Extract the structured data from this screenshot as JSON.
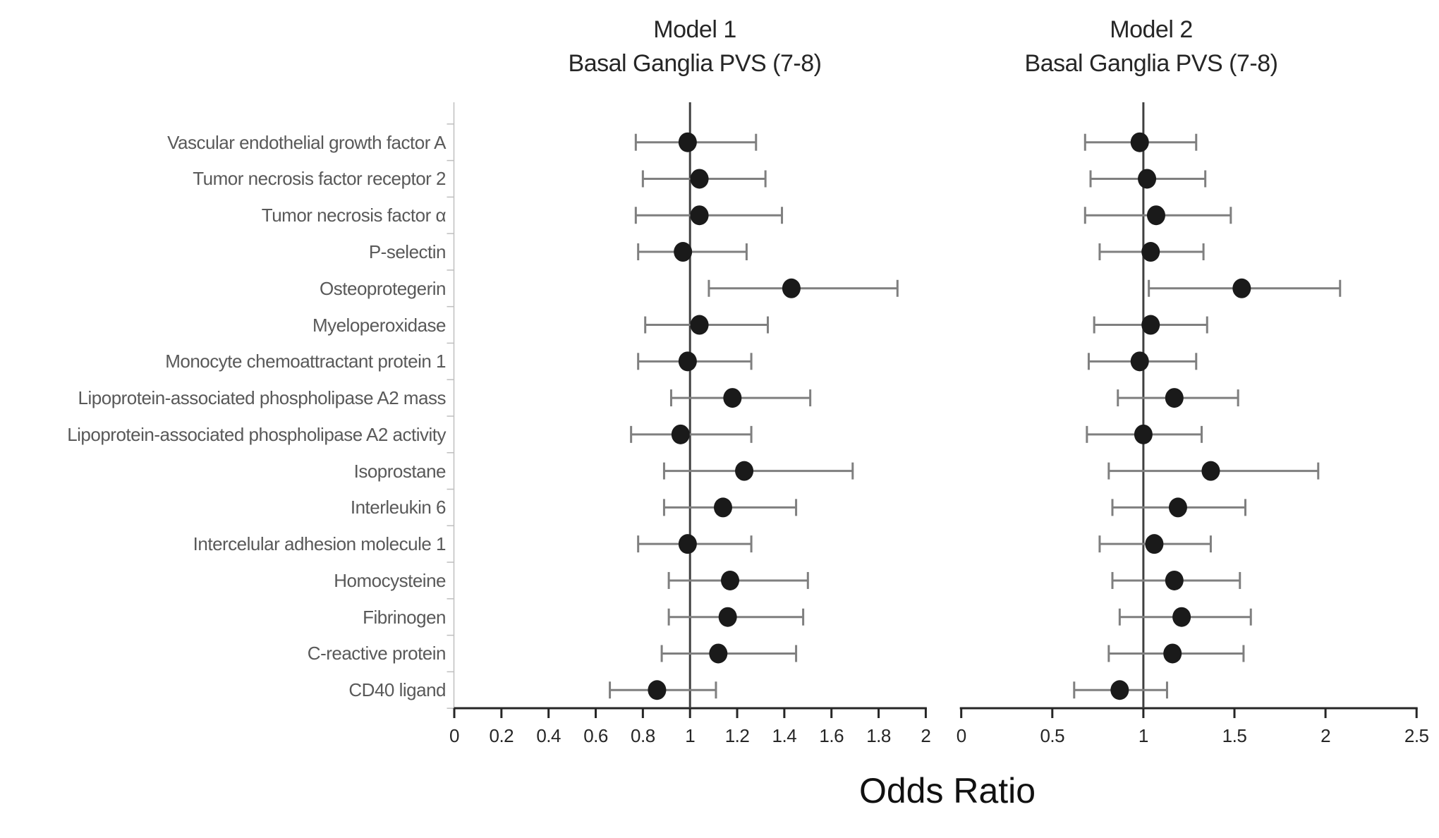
{
  "page": {
    "background": "#ffffff"
  },
  "chart_data": {
    "type": "forest",
    "xlabel": "Odds Ratio",
    "grid": false,
    "legend": "none",
    "categories": [
      "Vascular endothelial growth factor A",
      "Tumor necrosis factor receptor 2",
      "Tumor necrosis factor α",
      "P-selectin",
      "Osteoprotegerin",
      "Myeloperoxidase",
      "Monocyte chemoattractant protein 1",
      "Lipoprotein-associated phospholipase A2 mass",
      "Lipoprotein-associated phospholipase A2 activity",
      "Isoprostane",
      "Interleukin 6",
      "Intercelular adhesion molecule 1",
      "Homocysteine",
      "Fibrinogen",
      "C-reactive protein",
      "CD40 ligand"
    ],
    "panels": [
      {
        "title_line1": "Model 1",
        "title_line2": "Basal Ganglia PVS (7-8)",
        "xlim": [
          0,
          2
        ],
        "x_tick_labels": [
          "0",
          "0.2",
          "0.4",
          "0.6",
          "0.8",
          "1",
          "1.2",
          "1.4",
          "1.6",
          "1.8",
          "2"
        ],
        "ref_line": 1,
        "points": [
          {
            "or": 0.99,
            "lo": 0.77,
            "hi": 1.28
          },
          {
            "or": 1.04,
            "lo": 0.8,
            "hi": 1.32
          },
          {
            "or": 1.04,
            "lo": 0.77,
            "hi": 1.39
          },
          {
            "or": 0.97,
            "lo": 0.78,
            "hi": 1.24
          },
          {
            "or": 1.43,
            "lo": 1.08,
            "hi": 1.88
          },
          {
            "or": 1.04,
            "lo": 0.81,
            "hi": 1.33
          },
          {
            "or": 0.99,
            "lo": 0.78,
            "hi": 1.26
          },
          {
            "or": 1.18,
            "lo": 0.92,
            "hi": 1.51
          },
          {
            "or": 0.96,
            "lo": 0.75,
            "hi": 1.26
          },
          {
            "or": 1.23,
            "lo": 0.89,
            "hi": 1.69
          },
          {
            "or": 1.14,
            "lo": 0.89,
            "hi": 1.45
          },
          {
            "or": 0.99,
            "lo": 0.78,
            "hi": 1.26
          },
          {
            "or": 1.17,
            "lo": 0.91,
            "hi": 1.5
          },
          {
            "or": 1.16,
            "lo": 0.91,
            "hi": 1.48
          },
          {
            "or": 1.12,
            "lo": 0.88,
            "hi": 1.45
          },
          {
            "or": 0.86,
            "lo": 0.66,
            "hi": 1.11
          }
        ]
      },
      {
        "title_line1": "Model 2",
        "title_line2": "Basal Ganglia PVS (7-8)",
        "xlim": [
          0,
          2.5
        ],
        "x_tick_labels": [
          "0",
          "0.5",
          "1",
          "1.5",
          "2",
          "2.5"
        ],
        "ref_line": 1,
        "points": [
          {
            "or": 0.98,
            "lo": 0.68,
            "hi": 1.29
          },
          {
            "or": 1.02,
            "lo": 0.71,
            "hi": 1.34
          },
          {
            "or": 1.07,
            "lo": 0.68,
            "hi": 1.48
          },
          {
            "or": 1.04,
            "lo": 0.76,
            "hi": 1.33
          },
          {
            "or": 1.54,
            "lo": 1.03,
            "hi": 2.08
          },
          {
            "or": 1.04,
            "lo": 0.73,
            "hi": 1.35
          },
          {
            "or": 0.98,
            "lo": 0.7,
            "hi": 1.29
          },
          {
            "or": 1.17,
            "lo": 0.86,
            "hi": 1.52
          },
          {
            "or": 1.0,
            "lo": 0.69,
            "hi": 1.32
          },
          {
            "or": 1.37,
            "lo": 0.81,
            "hi": 1.96
          },
          {
            "or": 1.19,
            "lo": 0.83,
            "hi": 1.56
          },
          {
            "or": 1.06,
            "lo": 0.76,
            "hi": 1.37
          },
          {
            "or": 1.17,
            "lo": 0.83,
            "hi": 1.53
          },
          {
            "or": 1.21,
            "lo": 0.87,
            "hi": 1.59
          },
          {
            "or": 1.16,
            "lo": 0.81,
            "hi": 1.55
          },
          {
            "or": 0.87,
            "lo": 0.62,
            "hi": 1.13
          }
        ]
      }
    ],
    "styles": {
      "dot_color": "#1a1a1a",
      "ci_color": "#7f7f7f",
      "axis_color": "#262626",
      "ref_line_color": "#404040",
      "category_axis_color": "#bfbfbf",
      "label_color": "#595959",
      "title_color": "#262626",
      "xlabel_color": "#111111"
    }
  }
}
